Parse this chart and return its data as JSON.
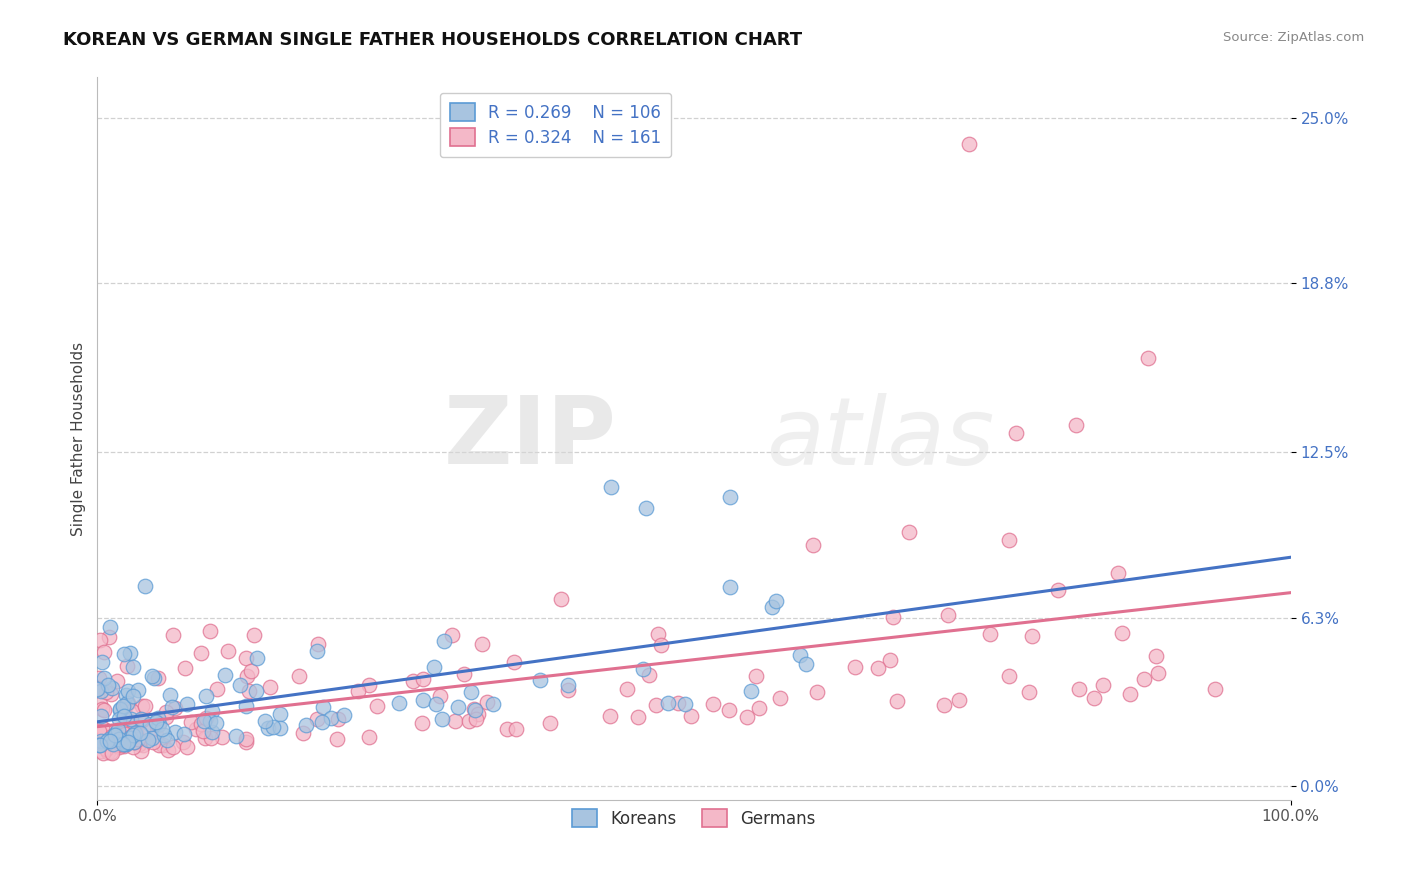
{
  "title": "KOREAN VS GERMAN SINGLE FATHER HOUSEHOLDS CORRELATION CHART",
  "source": "Source: ZipAtlas.com",
  "ylabel": "Single Father Households",
  "ytick_vals": [
    0.0,
    6.3,
    12.5,
    18.8,
    25.0
  ],
  "ytick_labels": [
    "0.0%",
    "6.3%",
    "12.5%",
    "18.8%",
    "25.0%"
  ],
  "xlim": [
    0.0,
    100.0
  ],
  "ylim": [
    -0.5,
    26.5
  ],
  "korean_color": "#a8c4e0",
  "german_color": "#f4b8c8",
  "korean_edge_color": "#5b9bd5",
  "german_edge_color": "#e07090",
  "korean_line_color": "#4472c4",
  "german_line_color": "#e07090",
  "korean_R": 0.269,
  "korean_N": 106,
  "german_R": 0.324,
  "german_N": 161,
  "watermark_zip": "ZIP",
  "watermark_atlas": "atlas",
  "legend_label_korean": "Koreans",
  "legend_label_german": "Germans",
  "background_color": "#ffffff",
  "grid_color": "#cccccc",
  "title_fontsize": 13,
  "tick_fontsize": 11,
  "ytick_color": "#4472c4",
  "xtick_color": "#555555"
}
